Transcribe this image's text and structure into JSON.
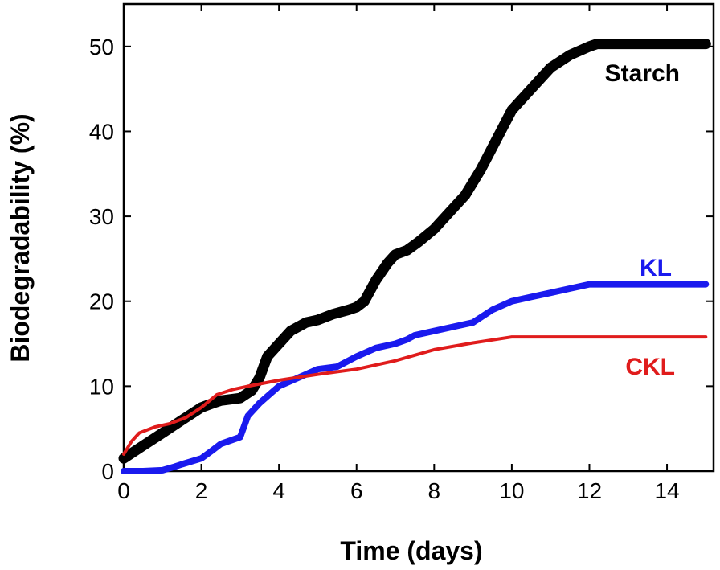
{
  "chart_data": {
    "type": "line",
    "xlabel": "Time (days)",
    "ylabel": "Biodegradability (%)",
    "xlim": [
      0,
      15.2
    ],
    "ylim": [
      0,
      55
    ],
    "xticks": [
      "0",
      "2",
      "4",
      "6",
      "8",
      "10",
      "12",
      "14"
    ],
    "yticks": [
      "0",
      "10",
      "20",
      "30",
      "40",
      "50"
    ],
    "grid": false,
    "legend": "inline labels at right",
    "series": [
      {
        "name": "Starch",
        "color": "#000000",
        "x": [
          0,
          0.5,
          1,
          1.5,
          2,
          2.3,
          2.5,
          3,
          3.3,
          3.5,
          3.7,
          4,
          4.3,
          4.7,
          5,
          5.4,
          5.8,
          6,
          6.2,
          6.5,
          6.8,
          7,
          7.3,
          7.6,
          8,
          8.4,
          8.8,
          9.2,
          9.6,
          10,
          10.5,
          11,
          11.5,
          12,
          12.2,
          13,
          14,
          15
        ],
        "y": [
          1.5,
          3,
          4.5,
          6,
          7.5,
          8,
          8.3,
          8.6,
          9.5,
          11,
          13.5,
          15,
          16.5,
          17.5,
          17.8,
          18.5,
          19,
          19.3,
          20,
          22.5,
          24.5,
          25.5,
          26,
          27,
          28.5,
          30.5,
          32.5,
          35.5,
          39,
          42.5,
          45,
          47.5,
          49,
          50,
          50.3,
          50.3,
          50.3,
          50.3
        ]
      },
      {
        "name": "KL",
        "color": "#1a1aee",
        "x": [
          0,
          0.5,
          1,
          1.3,
          1.5,
          2,
          2.3,
          2.5,
          3,
          3.2,
          3.5,
          3.8,
          4,
          4.5,
          5,
          5.5,
          6,
          6.5,
          7,
          7.3,
          7.5,
          8,
          8.5,
          9,
          9.5,
          10,
          10.5,
          11,
          11.5,
          12,
          13,
          14,
          15
        ],
        "y": [
          0,
          0,
          0.1,
          0.5,
          0.8,
          1.5,
          2.5,
          3.2,
          4,
          6.5,
          8,
          9.2,
          10,
          11,
          12,
          12.3,
          13.5,
          14.5,
          15,
          15.5,
          16,
          16.5,
          17,
          17.5,
          19,
          20,
          20.5,
          21,
          21.5,
          22,
          22,
          22,
          22
        ]
      },
      {
        "name": "CKL",
        "color": "#e01c1c",
        "x": [
          0,
          0.2,
          0.4,
          0.8,
          1.2,
          1.6,
          2,
          2.4,
          2.8,
          3.2,
          4,
          5,
          6,
          7,
          8,
          9,
          10,
          11,
          12,
          13,
          14,
          15
        ],
        "y": [
          2,
          3.5,
          4.5,
          5.2,
          5.6,
          6.3,
          7.5,
          9,
          9.6,
          10,
          10.7,
          11.4,
          12,
          13,
          14.3,
          15.1,
          15.8,
          15.8,
          15.8,
          15.8,
          15.8,
          15.8
        ]
      }
    ]
  }
}
